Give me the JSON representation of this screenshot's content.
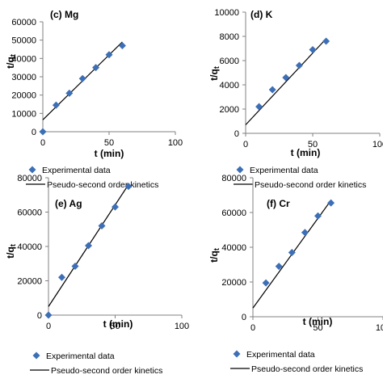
{
  "colors": {
    "marker": "#3d6fb6",
    "line": "#000000",
    "axis": "#808080"
  },
  "legend": {
    "markers": "Experimental data",
    "line": "Pseudo-second order kinetics"
  },
  "chart_data": [
    {
      "type": "scatter",
      "title": "(c) Mg",
      "xlabel": "t (min)",
      "ylabel": "t/qt",
      "xlim": [
        0,
        100
      ],
      "ylim": [
        0,
        60000
      ],
      "xticks": [
        0,
        50,
        100
      ],
      "yticks": [
        0,
        10000,
        20000,
        30000,
        40000,
        50000,
        60000
      ],
      "series": [
        {
          "x": [
            0,
            10,
            20,
            30,
            40,
            50,
            60
          ],
          "y": [
            0,
            14500,
            21000,
            29000,
            35000,
            42000,
            47000
          ]
        },
        {
          "type": "line",
          "x": [
            0,
            60
          ],
          "y": [
            6500,
            49000
          ]
        }
      ]
    },
    {
      "type": "scatter",
      "title": "(d) K",
      "xlabel": "t (min)",
      "ylabel": "t/qt",
      "xlim": [
        0,
        100
      ],
      "ylim": [
        0,
        10000
      ],
      "xticks": [
        0,
        50,
        100
      ],
      "yticks": [
        0,
        2000,
        4000,
        6000,
        8000,
        10000
      ],
      "series": [
        {
          "x": [
            10,
            20,
            30,
            40,
            50,
            60
          ],
          "y": [
            2200,
            3600,
            4600,
            5600,
            6900,
            7600
          ]
        },
        {
          "type": "line",
          "x": [
            0,
            60
          ],
          "y": [
            700,
            7800
          ]
        }
      ]
    },
    {
      "type": "scatter",
      "title": "(e) Ag",
      "xlabel": "t (min)",
      "ylabel": "t/qt",
      "xlim": [
        0,
        100
      ],
      "ylim": [
        0,
        80000
      ],
      "xticks": [
        0,
        50,
        100
      ],
      "yticks": [
        0,
        20000,
        40000,
        60000,
        80000
      ],
      "series": [
        {
          "x": [
            0,
            10,
            20,
            30,
            40,
            50,
            60
          ],
          "y": [
            0,
            22000,
            28500,
            40500,
            52000,
            63000,
            75000
          ]
        },
        {
          "type": "line",
          "x": [
            0,
            60
          ],
          "y": [
            5000,
            76000
          ]
        }
      ]
    },
    {
      "type": "scatter",
      "title": "(f) Cr",
      "xlabel": "t (min)",
      "ylabel": "t/qt",
      "xlim": [
        0,
        100
      ],
      "ylim": [
        0,
        80000
      ],
      "xticks": [
        0,
        50,
        100
      ],
      "yticks": [
        0,
        20000,
        40000,
        60000,
        80000
      ],
      "series": [
        {
          "x": [
            10,
            20,
            30,
            40,
            50,
            60
          ],
          "y": [
            19500,
            29000,
            37000,
            48500,
            58000,
            65500
          ]
        },
        {
          "type": "line",
          "x": [
            0,
            60
          ],
          "y": [
            5000,
            67000
          ]
        }
      ]
    }
  ]
}
